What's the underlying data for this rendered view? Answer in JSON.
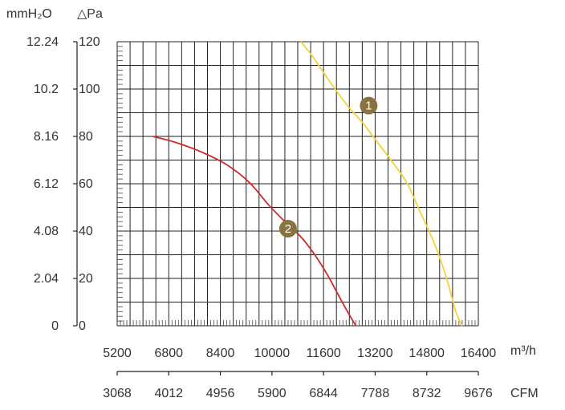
{
  "chart_data": {
    "type": "line",
    "left_axis_unit": "mmH₂O",
    "right_axis_unit": "△Pa",
    "bottom_axis_unit": "m³/h",
    "cfm_axis_unit": "CFM",
    "x_ticks_m3h": [
      "5200",
      "6800",
      "8400",
      "10000",
      "11600",
      "13200",
      "14800",
      "16400"
    ],
    "x_ticks_cfm": [
      "3068",
      "4012",
      "4956",
      "5900",
      "6844",
      "7788",
      "8732",
      "9676"
    ],
    "y_ticks_pa": [
      "0",
      "20",
      "40",
      "60",
      "80",
      "100",
      "120"
    ],
    "y_ticks_mmh2o": [
      "0",
      "2.04",
      "4.08",
      "6.12",
      "8.16",
      "10.2",
      "12.24"
    ],
    "xlim": [
      5200,
      16400
    ],
    "ylim": [
      0,
      120
    ],
    "series": [
      {
        "name": "1",
        "color": "#f2d33a",
        "marker_at": [
          13000,
          93
        ],
        "points": [
          [
            10900,
            120
          ],
          [
            11300,
            113
          ],
          [
            11800,
            103
          ],
          [
            12400,
            92
          ],
          [
            12800,
            86
          ],
          [
            13300,
            77
          ],
          [
            13800,
            68
          ],
          [
            14200,
            60
          ],
          [
            14600,
            48
          ],
          [
            15000,
            36
          ],
          [
            15300,
            25
          ],
          [
            15500,
            16
          ],
          [
            15700,
            6
          ],
          [
            15900,
            0
          ]
        ]
      },
      {
        "name": "2",
        "color": "#cc2a2a",
        "marker_at": [
          10500,
          41
        ],
        "points": [
          [
            6300,
            80
          ],
          [
            7000,
            77.5
          ],
          [
            7800,
            73.5
          ],
          [
            8600,
            68
          ],
          [
            9300,
            60.5
          ],
          [
            9900,
            51
          ],
          [
            10400,
            44
          ],
          [
            10900,
            37.5
          ],
          [
            11300,
            30.5
          ],
          [
            11700,
            22
          ],
          [
            12000,
            14.5
          ],
          [
            12300,
            7
          ],
          [
            12600,
            0
          ]
        ]
      }
    ]
  }
}
